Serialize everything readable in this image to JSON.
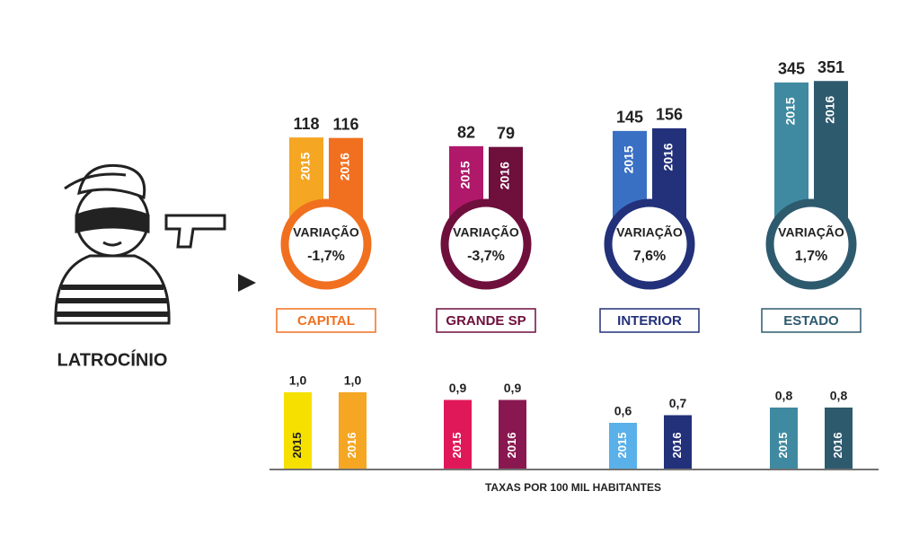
{
  "title": "LATROCÍNIO",
  "footer": "TAXAS POR 100 MIL HABITANTES",
  "years": [
    "2015",
    "2016"
  ],
  "variation_label": "VARIAÇÃO",
  "panels": [
    {
      "name": "CAPITAL",
      "counts": [
        118,
        116
      ],
      "variation": "-1,7%",
      "rates": [
        1.0,
        1.0
      ],
      "rate_labels": [
        "1,0",
        "1,0"
      ],
      "colors": [
        "#f5a623",
        "#f07020"
      ],
      "rate_colors": [
        "#f5e000",
        "#f5a623"
      ]
    },
    {
      "name": "GRANDE SP",
      "counts": [
        82,
        79
      ],
      "variation": "-3,7%",
      "rates": [
        0.9,
        0.9
      ],
      "rate_labels": [
        "0,9",
        "0,9"
      ],
      "colors": [
        "#b0186a",
        "#6e0f3c"
      ],
      "rate_colors": [
        "#e0185a",
        "#8a1850"
      ]
    },
    {
      "name": "INTERIOR",
      "counts": [
        145,
        156
      ],
      "variation": "7,6%",
      "rates": [
        0.6,
        0.7
      ],
      "rate_labels": [
        "0,6",
        "0,7"
      ],
      "colors": [
        "#3a70c4",
        "#23307a"
      ],
      "rate_colors": [
        "#5ab0e8",
        "#23307a"
      ]
    },
    {
      "name": "ESTADO",
      "counts": [
        345,
        351
      ],
      "variation": "1,7%",
      "rates": [
        0.8,
        0.8
      ],
      "rate_labels": [
        "0,8",
        "0,8"
      ],
      "colors": [
        "#3f8aa0",
        "#2e5a6e"
      ],
      "rate_colors": [
        "#3f8aa0",
        "#2e5a6e"
      ]
    }
  ]
}
